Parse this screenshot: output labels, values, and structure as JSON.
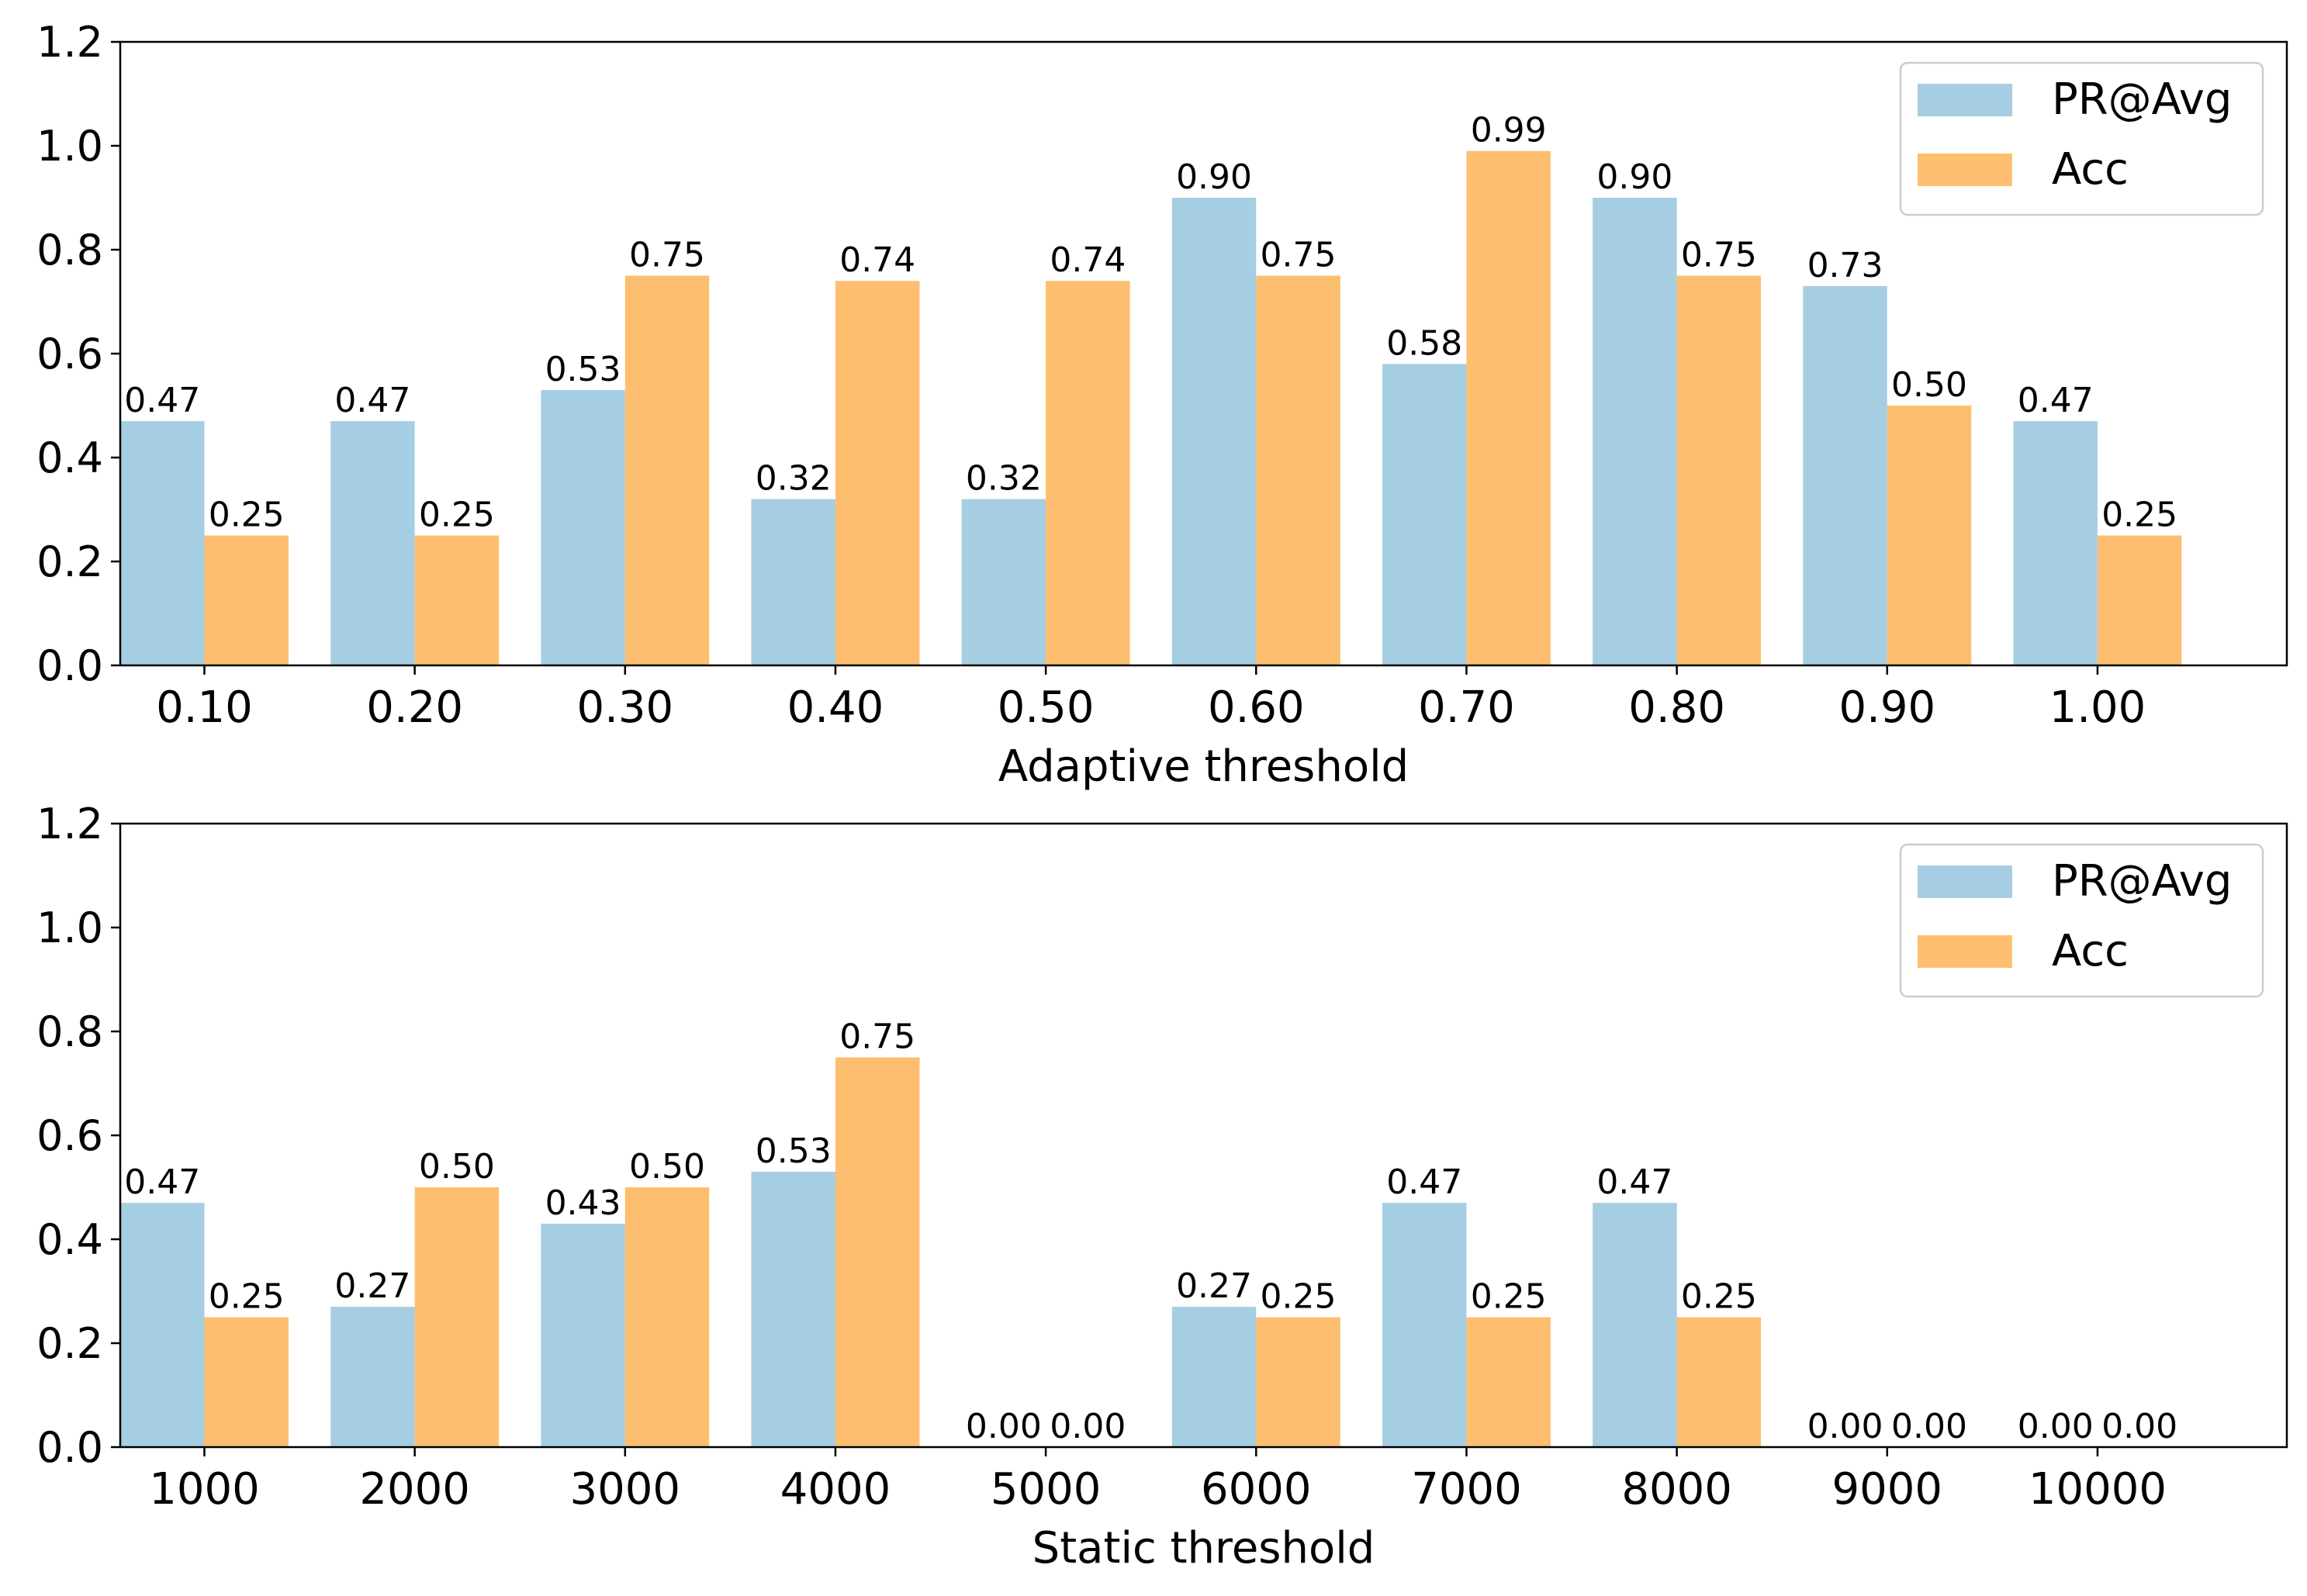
{
  "chart_data": [
    {
      "type": "bar",
      "xlabel": "Adaptive threshold",
      "ylabel": "",
      "ylim": [
        0,
        1.2
      ],
      "yticks": [
        "0.0",
        "0.2",
        "0.4",
        "0.6",
        "0.8",
        "1.0",
        "1.2"
      ],
      "categories": [
        "0.10",
        "0.20",
        "0.30",
        "0.40",
        "0.50",
        "0.60",
        "0.70",
        "0.80",
        "0.90",
        "1.00"
      ],
      "legend_position": "top-right",
      "series": [
        {
          "name": "PR@Avg",
          "color": "#a6cee3",
          "values": [
            0.47,
            0.47,
            0.53,
            0.32,
            0.32,
            0.9,
            0.58,
            0.9,
            0.73,
            0.47
          ],
          "labels": [
            "0.47",
            "0.47",
            "0.53",
            "0.32",
            "0.32",
            "0.90",
            "0.58",
            "0.90",
            "0.73",
            "0.47"
          ]
        },
        {
          "name": "Acc",
          "color": "#fdbf6f",
          "values": [
            0.25,
            0.25,
            0.75,
            0.74,
            0.74,
            0.75,
            0.99,
            0.75,
            0.5,
            0.25
          ],
          "labels": [
            "0.25",
            "0.25",
            "0.75",
            "0.74",
            "0.74",
            "0.75",
            "0.99",
            "0.75",
            "0.50",
            "0.25"
          ]
        }
      ]
    },
    {
      "type": "bar",
      "xlabel": "Static threshold",
      "ylabel": "",
      "ylim": [
        0,
        1.2
      ],
      "yticks": [
        "0.0",
        "0.2",
        "0.4",
        "0.6",
        "0.8",
        "1.0",
        "1.2"
      ],
      "categories": [
        "1000",
        "2000",
        "3000",
        "4000",
        "5000",
        "6000",
        "7000",
        "8000",
        "9000",
        "10000"
      ],
      "legend_position": "top-right",
      "series": [
        {
          "name": "PR@Avg",
          "color": "#a6cee3",
          "values": [
            0.47,
            0.27,
            0.43,
            0.53,
            0.0,
            0.27,
            0.47,
            0.47,
            0.0,
            0.0
          ],
          "labels": [
            "0.47",
            "0.27",
            "0.43",
            "0.53",
            "0.00",
            "0.27",
            "0.47",
            "0.47",
            "0.00",
            "0.00"
          ]
        },
        {
          "name": "Acc",
          "color": "#fdbf6f",
          "values": [
            0.25,
            0.5,
            0.5,
            0.75,
            0.0,
            0.25,
            0.25,
            0.25,
            0.0,
            0.0
          ],
          "labels": [
            "0.25",
            "0.50",
            "0.50",
            "0.75",
            "0.00",
            "0.25",
            "0.25",
            "0.25",
            "0.00",
            "0.00"
          ]
        }
      ]
    }
  ]
}
